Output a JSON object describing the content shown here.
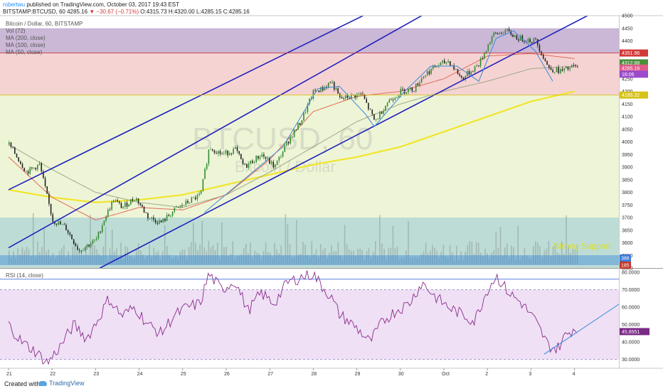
{
  "header": {
    "author": "robertwu",
    "published_text": "published on TradingView.com, October 03, 2017 19:43 EST",
    "ticker": "BITSTAMP:BTCUSD, 60",
    "last": "4285.16",
    "change": "▼ −30.67 (−0.71%)",
    "ohlc": "O:4315.73 H:4320.00 L:4285.15 C:4285.16"
  },
  "legend": {
    "title": "Bitcoin / Dollar, 60, BITSTAMP",
    "vol": "Vol (72)",
    "ma200": "MA (200, close)",
    "ma100": "MA (100, close)",
    "ma50": "MA (50, close)",
    "rsi": "RSI (14, close)"
  },
  "watermark": {
    "symbol": "BTCUSD, 60",
    "name": "Bitcoin / Dollar"
  },
  "annotation": {
    "text": "Strong Support"
  },
  "price_tags": [
    {
      "label": "4351.96",
      "value": 4351.96,
      "color": "#d23a3a"
    },
    {
      "label": "4312.88",
      "value": 4312.88,
      "color": "#4a8f3c"
    },
    {
      "label": "4285.16",
      "value": 4292,
      "color": "#e05a8a"
    },
    {
      "label": "16:06",
      "value": 4268,
      "color": "#9a4acb"
    },
    {
      "label": "4185.32",
      "value": 4185.32,
      "color": "#d7c21a"
    }
  ],
  "volume_tags": [
    {
      "label": "388",
      "color": "#3a7ad8"
    },
    {
      "label": "185",
      "color": "#c0392b"
    }
  ],
  "rsi_tag": {
    "label": "45.8551",
    "color": "#7b2c87"
  },
  "footer": {
    "created": "Created with",
    "brand": "TradingView"
  },
  "colors": {
    "up": "#2f8a2f",
    "down": "#222222",
    "ma200": "#f0e52b",
    "ma100": "#9fa88a",
    "ma50": "#e46b57",
    "channel": "#2222bb",
    "trend": "#3a8ad8",
    "rsi_line": "#8a2b8a"
  },
  "chart_data": [
    {
      "type": "candlestick",
      "title": "Bitcoin / Dollar, 60, BITSTAMP",
      "ylim": [
        3500,
        4500
      ],
      "yticks": [
        3500,
        3550,
        3600,
        3650,
        3700,
        3750,
        3800,
        3850,
        3900,
        3950,
        4000,
        4050,
        4100,
        4150,
        4200,
        4250,
        4300,
        4350,
        4400,
        4450,
        4500
      ],
      "x_ticks": [
        "21",
        "22",
        "23",
        "24",
        "25",
        "26",
        "27",
        "28",
        "29",
        "30",
        "Oct",
        "2",
        "3",
        "4"
      ],
      "x_range": [
        0,
        13.9
      ],
      "path_knots": [
        [
          0,
          3990
        ],
        [
          0.4,
          3880
        ],
        [
          0.7,
          3910
        ],
        [
          1,
          3690
        ],
        [
          1.3,
          3660
        ],
        [
          1.6,
          3570
        ],
        [
          2,
          3610
        ],
        [
          2.2,
          3700
        ],
        [
          2.4,
          3770
        ],
        [
          2.6,
          3740
        ],
        [
          2.9,
          3780
        ],
        [
          3.2,
          3700
        ],
        [
          3.5,
          3680
        ],
        [
          3.8,
          3730
        ],
        [
          4.1,
          3760
        ],
        [
          4.4,
          3790
        ],
        [
          4.6,
          3980
        ],
        [
          4.9,
          3950
        ],
        [
          5.2,
          3970
        ],
        [
          5.4,
          3900
        ],
        [
          5.8,
          3950
        ],
        [
          6.1,
          3900
        ],
        [
          6.4,
          4000
        ],
        [
          6.7,
          4080
        ],
        [
          7,
          4200
        ],
        [
          7.2,
          4210
        ],
        [
          7.4,
          4240
        ],
        [
          7.6,
          4170
        ],
        [
          8.1,
          4190
        ],
        [
          8.4,
          4080
        ],
        [
          8.7,
          4160
        ],
        [
          9,
          4200
        ],
        [
          9.3,
          4210
        ],
        [
          9.5,
          4260
        ],
        [
          9.8,
          4300
        ],
        [
          10.1,
          4320
        ],
        [
          10.4,
          4250
        ],
        [
          10.8,
          4310
        ],
        [
          11.1,
          4420
        ],
        [
          11.4,
          4440
        ],
        [
          11.7,
          4410
        ],
        [
          12.1,
          4400
        ],
        [
          12.4,
          4290
        ],
        [
          12.7,
          4280
        ],
        [
          13,
          4300
        ],
        [
          13.1,
          4285
        ]
      ],
      "ma200_knots": [
        [
          0,
          3810
        ],
        [
          1,
          3780
        ],
        [
          2,
          3760
        ],
        [
          3,
          3770
        ],
        [
          4,
          3790
        ],
        [
          5,
          3830
        ],
        [
          6,
          3870
        ],
        [
          7,
          3910
        ],
        [
          8,
          3940
        ],
        [
          9,
          3980
        ],
        [
          10,
          4040
        ],
        [
          11,
          4100
        ],
        [
          12,
          4160
        ],
        [
          13,
          4200
        ]
      ],
      "ma100_knots": [
        [
          0,
          3990
        ],
        [
          1,
          3890
        ],
        [
          2,
          3800
        ],
        [
          3,
          3760
        ],
        [
          4,
          3740
        ],
        [
          5,
          3790
        ],
        [
          6,
          3880
        ],
        [
          7,
          3980
        ],
        [
          8,
          4080
        ],
        [
          9,
          4150
        ],
        [
          10,
          4200
        ],
        [
          11,
          4240
        ],
        [
          12,
          4290
        ],
        [
          13,
          4300
        ]
      ],
      "ma50_knots": [
        [
          0,
          3940
        ],
        [
          1,
          3780
        ],
        [
          2,
          3690
        ],
        [
          3,
          3740
        ],
        [
          4,
          3730
        ],
        [
          5,
          3790
        ],
        [
          6,
          3930
        ],
        [
          7,
          4120
        ],
        [
          8,
          4180
        ],
        [
          9,
          4200
        ],
        [
          10,
          4250
        ],
        [
          11,
          4340
        ],
        [
          12,
          4350
        ],
        [
          13,
          4330
        ]
      ],
      "zones": [
        {
          "from": 4350,
          "to": 4450,
          "color": "#b8a0c8"
        },
        {
          "from": 4185,
          "to": 4350,
          "color": "#f2c4c4"
        },
        {
          "from": 3700,
          "to": 4185,
          "color": "#e8f1c8"
        },
        {
          "from": 3500,
          "to": 3700,
          "color": "#a8d0c8"
        }
      ],
      "channels": [
        {
          "points": [
            [
              0,
              3810
            ],
            [
              8.5,
              4530
            ]
          ]
        },
        {
          "points": [
            [
              0,
              3580
            ],
            [
              9.8,
              4530
            ]
          ]
        },
        {
          "points": [
            [
              2.1,
              3500
            ],
            [
              13.3,
              4500
            ]
          ]
        }
      ],
      "trend_lines": [
        {
          "points": [
            [
              4.5,
              3720
            ],
            [
              6.3,
              3980
            ],
            [
              7.1,
              4210
            ],
            [
              7.6,
              4220
            ],
            [
              8.2,
              4110
            ],
            [
              8.4,
              4060
            ],
            [
              9.1,
              4200
            ],
            [
              9.7,
              4300
            ],
            [
              10.3,
              4300
            ],
            [
              10.8,
              4240
            ],
            [
              11.2,
              4410
            ],
            [
              11.6,
              4440
            ],
            [
              12.1,
              4360
            ],
            [
              12.5,
              4240
            ]
          ]
        }
      ],
      "h_lines": [
        {
          "value": 4351.96,
          "color": "#d23a3a"
        },
        {
          "value": 4185.32,
          "color": "#d7c21a"
        }
      ]
    },
    {
      "type": "line",
      "title": "RSI (14, close)",
      "ylim": [
        25,
        82
      ],
      "yticks": [
        30,
        40,
        50,
        60,
        70,
        80
      ],
      "path_knots": [
        [
          0,
          50
        ],
        [
          0.3,
          40
        ],
        [
          0.6,
          35
        ],
        [
          0.9,
          28
        ],
        [
          1.2,
          38
        ],
        [
          1.5,
          50
        ],
        [
          1.8,
          42
        ],
        [
          2.1,
          55
        ],
        [
          2.3,
          65
        ],
        [
          2.6,
          55
        ],
        [
          2.9,
          60
        ],
        [
          3.2,
          50
        ],
        [
          3.5,
          45
        ],
        [
          3.8,
          55
        ],
        [
          4.1,
          60
        ],
        [
          4.4,
          62
        ],
        [
          4.6,
          79
        ],
        [
          4.9,
          70
        ],
        [
          5.2,
          75
        ],
        [
          5.5,
          58
        ],
        [
          5.8,
          68
        ],
        [
          6.1,
          62
        ],
        [
          6.4,
          74
        ],
        [
          6.7,
          77
        ],
        [
          7,
          79
        ],
        [
          7.2,
          72
        ],
        [
          7.4,
          66
        ],
        [
          7.6,
          56
        ],
        [
          8,
          48
        ],
        [
          8.3,
          40
        ],
        [
          8.6,
          52
        ],
        [
          8.9,
          58
        ],
        [
          9.2,
          62
        ],
        [
          9.5,
          74
        ],
        [
          9.8,
          66
        ],
        [
          10.1,
          60
        ],
        [
          10.4,
          56
        ],
        [
          10.7,
          52
        ],
        [
          11,
          70
        ],
        [
          11.2,
          78
        ],
        [
          11.5,
          68
        ],
        [
          11.8,
          62
        ],
        [
          12.1,
          52
        ],
        [
          12.4,
          38
        ],
        [
          12.6,
          36
        ],
        [
          12.8,
          44
        ],
        [
          13,
          48
        ],
        [
          13.1,
          46
        ]
      ],
      "h_lines": [
        {
          "value": 30,
          "color": "#7f7fbf"
        },
        {
          "value": 70,
          "color": "#7f7fbf"
        },
        {
          "value": 76,
          "color": "#2a5bd8"
        }
      ],
      "trend_lines": [
        {
          "points": [
            [
              12.3,
              33
            ],
            [
              14.7,
              73
            ]
          ]
        }
      ],
      "band": [
        30,
        70
      ]
    }
  ]
}
